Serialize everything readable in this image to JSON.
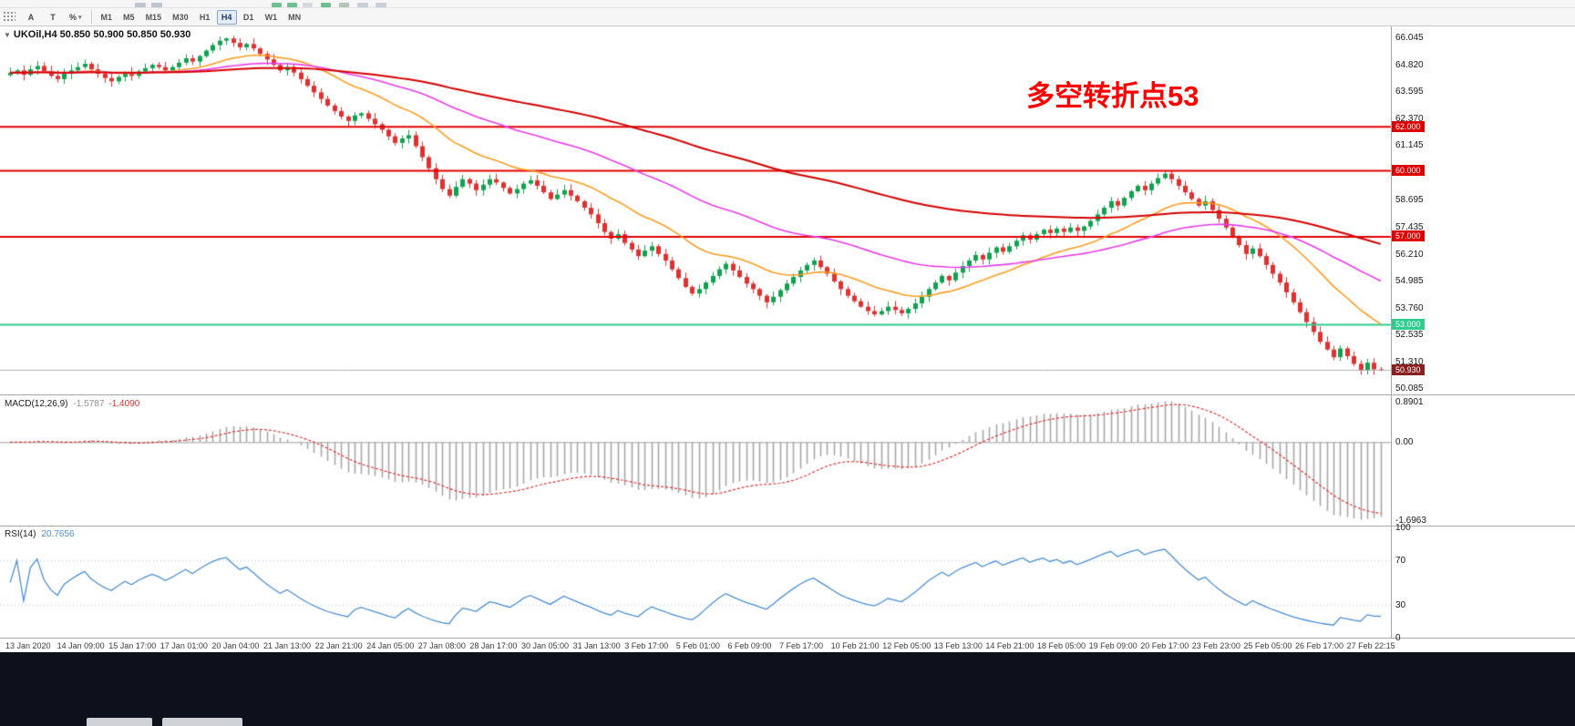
{
  "toolbar": {
    "tool_buttons": [
      {
        "name": "text-tool",
        "label": "A"
      },
      {
        "name": "label-tool",
        "label": "T"
      },
      {
        "name": "chart-tools-dropdown",
        "label": "%"
      }
    ],
    "timeframes": [
      "M1",
      "M5",
      "M15",
      "M30",
      "H1",
      "H4",
      "D1",
      "W1",
      "MN"
    ],
    "active_timeframe": "H4"
  },
  "chart": {
    "title": "UKOil,H4  50.850 50.900 50.850 50.930",
    "annotation": "多空转折点53",
    "annotation_color": "#ff0000",
    "up_color": "#10a24e",
    "down_color": "#e03131",
    "price_axis_ticks": [
      "66.045",
      "64.820",
      "63.595",
      "62.370",
      "61.145",
      "58.695",
      "57.435",
      "56.210",
      "54.985",
      "53.760",
      "52.535",
      "51.310",
      "50.085"
    ],
    "price_min": 49.85,
    "price_max": 66.55,
    "hlines": [
      {
        "price": 62.0,
        "label": "62.000",
        "color": "#e10000"
      },
      {
        "price": 60.0,
        "label": "60.000",
        "color": "#e10000"
      },
      {
        "price": 57.0,
        "label": "57.000",
        "color": "#e10000"
      },
      {
        "price": 53.0,
        "label": "53.000",
        "color": "#2ecc8e"
      }
    ],
    "bid": {
      "price": 50.93,
      "label": "50.930",
      "line_color": "#b0b0b0",
      "badge_color": "#8b1f1f"
    },
    "moving_averages": [
      {
        "period": 21,
        "color": "#ff9c21"
      },
      {
        "period": 55,
        "color": "#e93ce9"
      },
      {
        "period": 130,
        "color": "#d40000"
      }
    ],
    "closes": [
      64.45,
      64.55,
      64.35,
      64.6,
      64.75,
      64.5,
      64.3,
      64.15,
      64.4,
      64.55,
      64.7,
      64.85,
      64.6,
      64.4,
      64.2,
      64.05,
      64.25,
      64.45,
      64.3,
      64.5,
      64.65,
      64.8,
      64.7,
      64.55,
      64.7,
      64.9,
      65.1,
      64.95,
      65.2,
      65.45,
      65.7,
      65.9,
      66.0,
      65.8,
      65.6,
      65.75,
      65.55,
      65.3,
      65.05,
      64.8,
      64.55,
      64.7,
      64.45,
      64.15,
      63.85,
      63.55,
      63.25,
      62.95,
      62.7,
      62.45,
      62.25,
      62.5,
      62.6,
      62.35,
      62.1,
      61.85,
      61.55,
      61.25,
      61.45,
      61.6,
      61.1,
      60.6,
      60.1,
      59.6,
      59.15,
      58.85,
      59.25,
      59.6,
      59.4,
      59.1,
      59.35,
      59.6,
      59.45,
      59.2,
      58.95,
      59.15,
      59.4,
      59.55,
      59.3,
      59.0,
      58.7,
      58.9,
      59.1,
      58.85,
      58.6,
      58.3,
      58.0,
      57.6,
      57.2,
      56.9,
      57.1,
      56.7,
      56.4,
      56.1,
      56.35,
      56.55,
      56.2,
      55.9,
      55.5,
      55.1,
      54.7,
      54.4,
      54.6,
      54.9,
      55.2,
      55.5,
      55.75,
      55.45,
      55.15,
      54.85,
      54.6,
      54.3,
      54.0,
      54.25,
      54.55,
      54.85,
      55.15,
      55.45,
      55.7,
      55.9,
      55.6,
      55.3,
      54.95,
      54.6,
      54.3,
      54.05,
      53.8,
      53.6,
      53.45,
      53.6,
      53.8,
      53.65,
      53.5,
      53.7,
      53.95,
      54.25,
      54.6,
      54.9,
      55.2,
      55.0,
      55.35,
      55.65,
      55.9,
      56.15,
      55.95,
      56.25,
      56.5,
      56.3,
      56.55,
      56.8,
      57.05,
      56.85,
      57.1,
      57.3,
      57.15,
      57.35,
      57.2,
      57.4,
      57.25,
      57.45,
      57.7,
      58.0,
      58.3,
      58.6,
      58.4,
      58.75,
      59.05,
      59.3,
      59.1,
      59.4,
      59.65,
      59.85,
      59.6,
      59.3,
      59.0,
      58.7,
      58.4,
      58.6,
      58.2,
      57.8,
      57.4,
      57.0,
      56.6,
      56.2,
      56.45,
      56.1,
      55.7,
      55.3,
      54.9,
      54.45,
      54.0,
      53.55,
      53.1,
      52.65,
      52.2,
      51.85,
      51.5,
      51.9,
      51.55,
      51.2,
      50.9,
      51.25,
      50.95,
      50.93
    ]
  },
  "macd": {
    "label": "MACD(12,26,9)",
    "value_main": "-1.5787",
    "value_signal": "-1.4090",
    "params": {
      "fast": 12,
      "slow": 26,
      "signal": 9
    },
    "ticks": [
      {
        "value": 0.8901,
        "label": "0.8901"
      },
      {
        "value": 0,
        "label": "0.00"
      },
      {
        "value": -1.6963,
        "label": "-1.6963"
      }
    ],
    "range_min": -1.8,
    "range_max": 0.98,
    "histogram_color": "#a8a8a8",
    "signal_color": "#e03131",
    "zero_line_color": "#9e9e9e"
  },
  "rsi": {
    "label": "RSI(14)",
    "value": "20.7656",
    "period": 14,
    "ticks": [
      {
        "value": 100,
        "label": "100"
      },
      {
        "value": 70,
        "label": "70"
      },
      {
        "value": 30,
        "label": "30"
      },
      {
        "value": 0,
        "label": "0"
      }
    ],
    "levels": [
      70,
      30
    ],
    "line_color": "#4a8fd4",
    "level_color": "#a9c4e2"
  },
  "time_axis": [
    "13 Jan 2020",
    "14 Jan 09:00",
    "15 Jan 17:00",
    "17 Jan 01:00",
    "20 Jan 04:00",
    "21 Jan 13:00",
    "22 Jan 21:00",
    "24 Jan 05:00",
    "27 Jan 08:00",
    "28 Jan 17:00",
    "30 Jan 05:00",
    "31 Jan 13:00",
    "3 Feb 17:00",
    "5 Feb 01:00",
    "6 Feb 09:00",
    "7 Feb 17:00",
    "10 Feb 21:00",
    "12 Feb 05:00",
    "13 Feb 13:00",
    "14 Feb 21:00",
    "18 Feb 05:00",
    "19 Feb 09:00",
    "20 Feb 17:00",
    "23 Feb 23:00",
    "25 Feb 05:00",
    "26 Feb 17:00",
    "27 Feb 22:15"
  ]
}
